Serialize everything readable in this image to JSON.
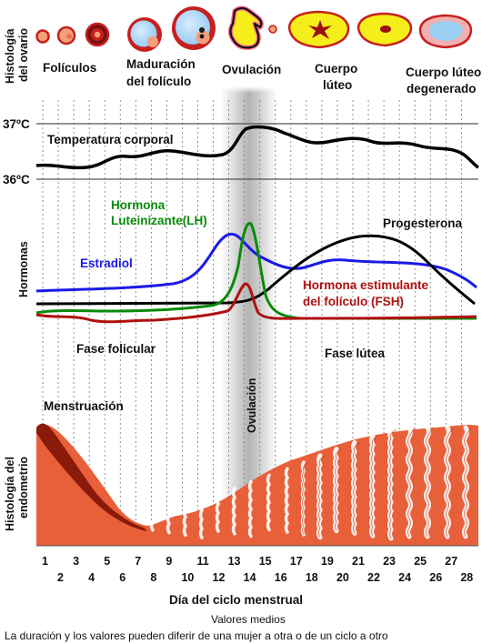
{
  "side_labels": {
    "ovary": [
      "Histología",
      "del ovario"
    ],
    "hormones": "Hormonas",
    "endometrium": [
      "Histología del",
      "endometrio"
    ]
  },
  "ovary_stages": {
    "follicles": "Folículos",
    "maturation": [
      "Maduración",
      "del folículo"
    ],
    "ovulation": "Ovulación",
    "corpus_luteum": [
      "Cuerpo",
      "lúteo"
    ],
    "degenerate": [
      "Cuerpo lúteo",
      "degenerado"
    ]
  },
  "temperature": {
    "high": "37ºC",
    "low": "36ºC",
    "label": "Temperatura corporal"
  },
  "hormones": {
    "lh": [
      "Hormona",
      "Luteinizante(LH)"
    ],
    "estradiol": "Estradiol",
    "progesterone": "Progesterona",
    "fsh": [
      "Hormona estimulante",
      "del folículo (FSH)"
    ],
    "colors": {
      "lh": "#0a8a0a",
      "estradiol": "#1a1ae6",
      "progesterone": "#000000",
      "fsh": "#b01010",
      "temperature": "#000000"
    }
  },
  "phases": {
    "follicular": "Fase folicular",
    "luteal": "Fase lútea",
    "ovulation": "Ovulación",
    "menstruation": "Menstruación"
  },
  "axis": {
    "days_top": [
      "1",
      "3",
      "5",
      "7",
      "9",
      "11",
      "13",
      "15",
      "17",
      "19",
      "21",
      "23",
      "25",
      "27"
    ],
    "days_bottom": [
      "2",
      "4",
      "6",
      "8",
      "10",
      "12",
      "14",
      "16",
      "18",
      "20",
      "22",
      "24",
      "26",
      "28"
    ],
    "title": "Día del ciclo menstrual"
  },
  "footer": {
    "line1": "Valores medios",
    "line2": "La duración y los valores pueden diferir de una mujer a otra o de un ciclo a otro"
  },
  "colors": {
    "endometrium": "#e8603a",
    "menstruation_dark": "#8a1a0a",
    "follicle_fill": "#f4a07a",
    "egg": "#f07050",
    "corpus_yellow": "#f6ee1a",
    "grid_line": "#555555",
    "ovulation_band": "#9a9a9a"
  }
}
